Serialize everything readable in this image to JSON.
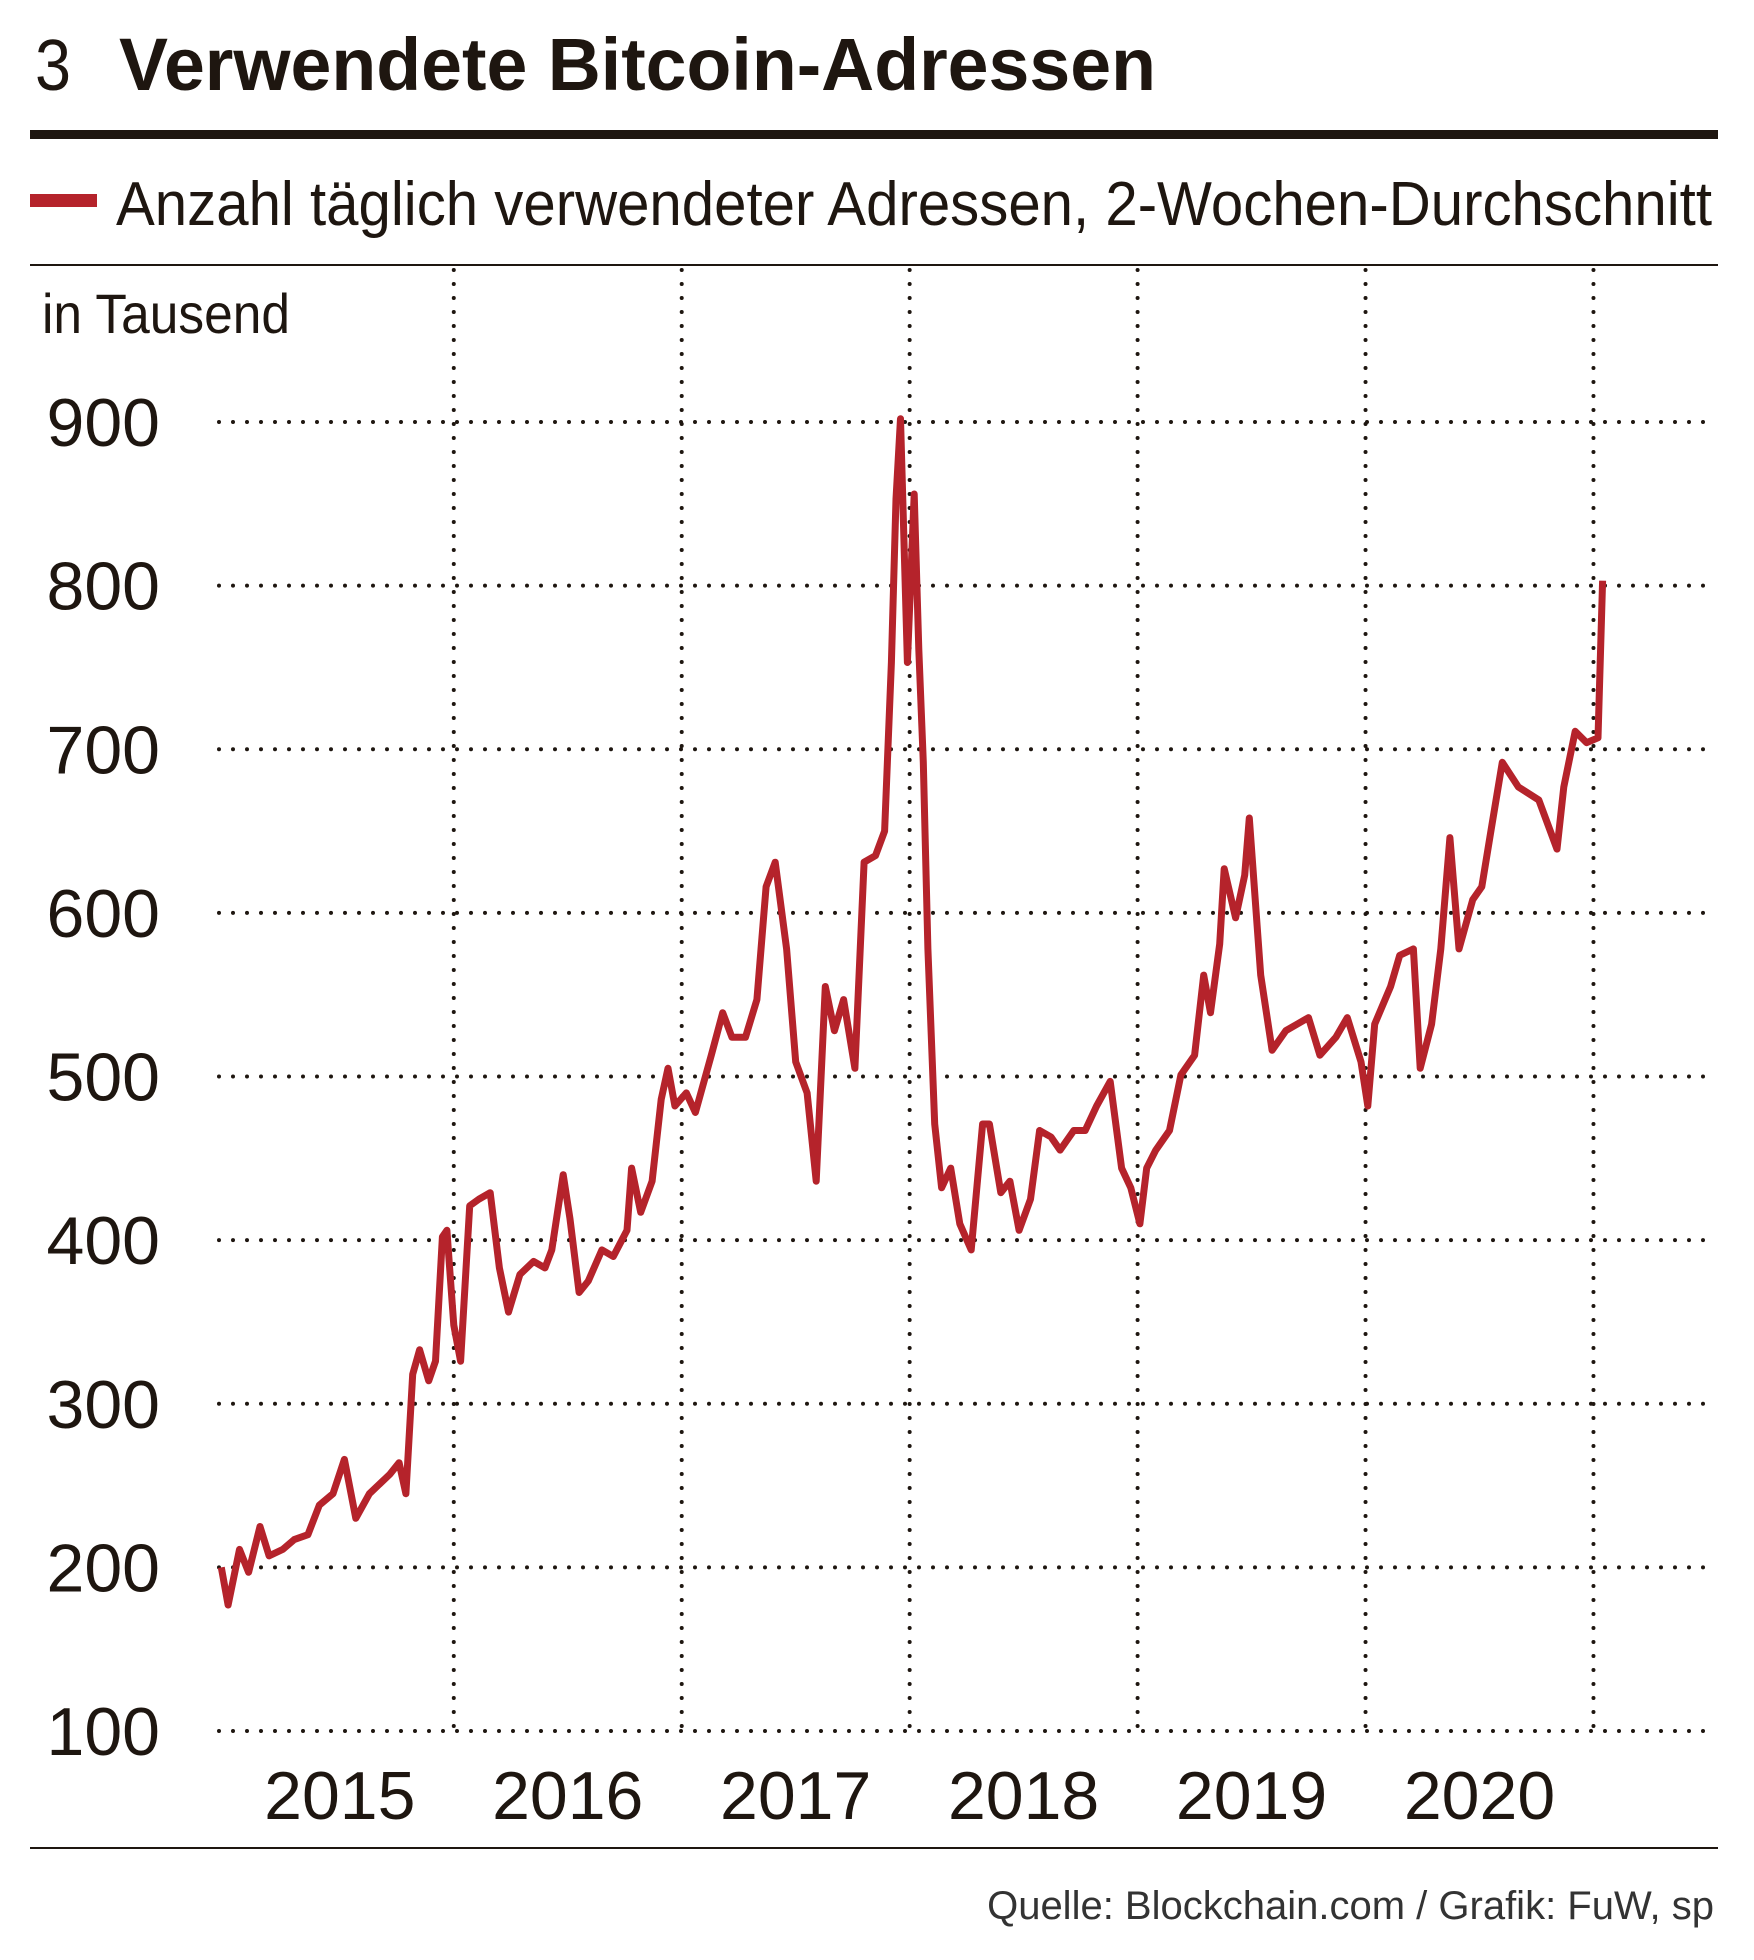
{
  "chart_data": {
    "type": "line",
    "chart_number": "3",
    "title": "Verwendete Bitcoin-Adressen",
    "y_axis_label": "in Tausend",
    "source": "Quelle: Blockchain.com / Grafik: FuW, sp",
    "x": [
      2014.98,
      2015.01,
      2015.06,
      2015.1,
      2015.15,
      2015.19,
      2015.25,
      2015.3,
      2015.36,
      2015.41,
      2015.47,
      2015.52,
      2015.57,
      2015.63,
      2015.72,
      2015.76,
      2015.79,
      2015.82,
      2015.85,
      2015.89,
      2015.92,
      2015.95,
      2015.97,
      2016.0,
      2016.03,
      2016.07,
      2016.11,
      2016.16,
      2016.2,
      2016.24,
      2016.29,
      2016.35,
      2016.4,
      2016.43,
      2016.48,
      2016.51,
      2016.55,
      2016.59,
      2016.65,
      2016.7,
      2016.76,
      2016.78,
      2016.82,
      2016.87,
      2016.91,
      2016.94,
      2016.97,
      2017.02,
      2017.06,
      2017.13,
      2017.18,
      2017.22,
      2017.28,
      2017.33,
      2017.37,
      2017.41,
      2017.46,
      2017.5,
      2017.55,
      2017.59,
      2017.63,
      2017.67,
      2017.71,
      2017.76,
      2017.8,
      2017.85,
      2017.89,
      2017.92,
      2017.94,
      2017.96,
      2017.99,
      2018.02,
      2018.04,
      2018.06,
      2018.08,
      2018.11,
      2018.14,
      2018.18,
      2018.22,
      2018.27,
      2018.32,
      2018.35,
      2018.4,
      2018.44,
      2018.48,
      2018.53,
      2018.57,
      2018.62,
      2018.66,
      2018.72,
      2018.77,
      2018.82,
      2018.88,
      2018.93,
      2018.97,
      2019.01,
      2019.04,
      2019.08,
      2019.14,
      2019.19,
      2019.25,
      2019.29,
      2019.32,
      2019.36,
      2019.38,
      2019.43,
      2019.47,
      2019.49,
      2019.54,
      2019.59,
      2019.65,
      2019.7,
      2019.75,
      2019.8,
      2019.87,
      2019.92,
      2019.98,
      2020.01,
      2020.04,
      2020.11,
      2020.15,
      2020.21,
      2020.24,
      2020.29,
      2020.33,
      2020.37,
      2020.41,
      2020.47,
      2020.51,
      2020.55,
      2020.6,
      2020.67,
      2020.76,
      2020.84,
      2020.87,
      2020.92,
      2020.97,
      2021.02,
      2021.04
    ],
    "series": [
      {
        "name": "Anzahl täglich verwendeter Adressen, 2-Wochen-Durchschnitt",
        "color": "#b5232b",
        "values": [
          200,
          177,
          211,
          197,
          225,
          207,
          211,
          217,
          220,
          238,
          245,
          266,
          230,
          245,
          257,
          264,
          245,
          318,
          333,
          314,
          326,
          402,
          406,
          348,
          326,
          421,
          425,
          429,
          383,
          356,
          379,
          387,
          383,
          394,
          440,
          413,
          368,
          375,
          394,
          390,
          406,
          444,
          417,
          436,
          486,
          505,
          482,
          490,
          478,
          513,
          539,
          524,
          524,
          547,
          616,
          631,
          578,
          509,
          490,
          436,
          555,
          528,
          547,
          505,
          631,
          635,
          650,
          753,
          853,
          902,
          753,
          856,
          761,
          692,
          578,
          471,
          432,
          444,
          410,
          394,
          471,
          471,
          429,
          436,
          406,
          425,
          467,
          463,
          455,
          467,
          467,
          482,
          497,
          444,
          432,
          410,
          444,
          455,
          467,
          501,
          513,
          562,
          539,
          581,
          627,
          597,
          623,
          658,
          562,
          516,
          528,
          532,
          536,
          513,
          524,
          536,
          509,
          482,
          532,
          555,
          574,
          578,
          505,
          532,
          578,
          646,
          578,
          608,
          616,
          650,
          692,
          677,
          669,
          639,
          677,
          711,
          704,
          707,
          803
        ]
      }
    ],
    "xlim": [
      2014.97,
      2021.52
    ],
    "xticks": [
      {
        "value": 2015.5,
        "label": "2015"
      },
      {
        "value": 2016.5,
        "label": "2016"
      },
      {
        "value": 2017.5,
        "label": "2017"
      },
      {
        "value": 2018.5,
        "label": "2018"
      },
      {
        "value": 2019.5,
        "label": "2019"
      },
      {
        "value": 2020.5,
        "label": "2020"
      }
    ],
    "xgrid": [
      2016,
      2017,
      2018,
      2019,
      2020,
      2021
    ],
    "ylim": [
      100,
      900
    ],
    "yticks": [
      100,
      200,
      300,
      400,
      500,
      600,
      700,
      800,
      900
    ],
    "grid": true
  }
}
